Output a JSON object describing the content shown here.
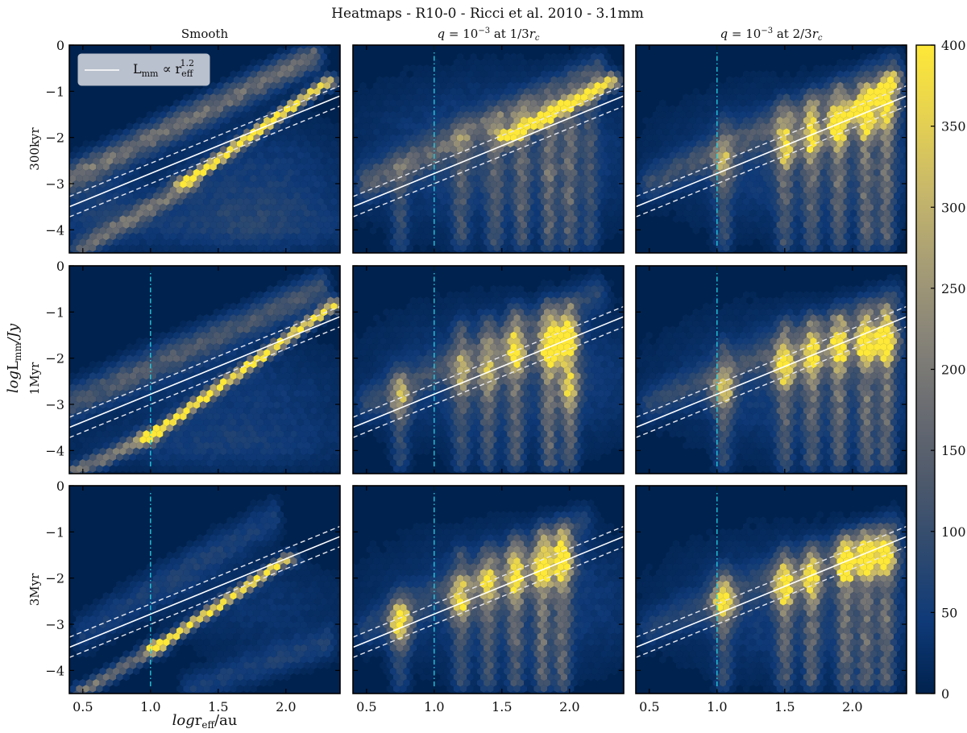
{
  "chart_data": {
    "type": "heatmap",
    "subtype": "hexbin",
    "title": "Heatmaps - R10-0 - Ricci et al. 2010 - 3.1mm",
    "xlabel": {
      "prefix": "log",
      "main": "r",
      "sub": "eff",
      "suffix": "/au"
    },
    "ylabel": {
      "prefix": "log",
      "main": "L",
      "sub": "mm",
      "suffix": "/Jy"
    },
    "xlim": [
      0.4,
      2.4
    ],
    "ylim": [
      -4.5,
      0
    ],
    "xticks": [
      0.5,
      1.0,
      1.5,
      2.0
    ],
    "xtick_labels": [
      "0.5",
      "1.0",
      "1.5",
      "2.0"
    ],
    "yticks": [
      0,
      -1,
      -2,
      -3,
      -4
    ],
    "ytick_labels": [
      "0",
      "−1",
      "−2",
      "−3",
      "−4"
    ],
    "columns": [
      {
        "title": "Smooth"
      },
      {
        "title_parts": {
          "q": "q",
          "eq": " = 10",
          "exp": "−3",
          "at": " at 1/3",
          "r": "r",
          "sub": "c"
        }
      },
      {
        "title_parts": {
          "q": "q",
          "eq": " = 10",
          "exp": "−3",
          "at": " at 2/3",
          "r": "r",
          "sub": "c"
        }
      }
    ],
    "rows": [
      {
        "label": "300kyr"
      },
      {
        "label": "1Myr"
      },
      {
        "label": "3Myr"
      }
    ],
    "legend": {
      "placement": "upper-left",
      "entry": {
        "main": "L",
        "sub": "mm",
        "prop": " ∝ r",
        "rsub": "eff",
        "exp": "1.2"
      }
    },
    "fit_line": {
      "slope": 1.2,
      "points": [
        [
          0.4,
          -3.5
        ],
        [
          2.4,
          -1.1
        ]
      ],
      "dashed_offset": 0.22,
      "color": "#ffffff"
    },
    "reference_line": {
      "x": 1.0,
      "color": "#22d3e6",
      "style": "dash-dot",
      "absent_in": [
        [
          0,
          0
        ]
      ]
    },
    "colorbar": {
      "min": 0,
      "max": 400,
      "ticks": [
        0,
        50,
        100,
        150,
        200,
        250,
        300,
        350,
        400
      ],
      "colormap": "cividis",
      "stops": [
        "#00224e",
        "#0f3a78",
        "#2f4a6f",
        "#4f5a6c",
        "#6b6d72",
        "#898578",
        "#a89e75",
        "#c8b86a",
        "#e6d250",
        "#fee838"
      ]
    },
    "panels": [
      [
        {
          "bands": [
            [
              [
                0.4,
                -2.9
              ],
              [
                2.2,
                -0.25
              ],
              0.22,
              170
            ],
            [
              [
                1.25,
                -3.0
              ],
              [
                2.3,
                -0.8
              ],
              0.1,
              400
            ],
            [
              [
                0.5,
                -4.4
              ],
              [
                1.3,
                -3.0
              ],
              0.15,
              160
            ]
          ],
          "blobs": [
            [
              [
                1.8,
                -3.0
              ],
              0.5,
              0.9,
              55
            ],
            [
              [
                0.6,
                -3.5
              ],
              0.25,
              0.6,
              50
            ],
            [
              [
                1.6,
                -3.9
              ],
              0.7,
              0.4,
              45
            ]
          ],
          "streaks": [],
          "peaks": []
        },
        {
          "bands": [
            [
              [
                0.4,
                -3.0
              ],
              [
                2.25,
                -0.5
              ],
              0.25,
              120
            ],
            [
              [
                1.0,
                -3.7
              ],
              [
                2.35,
                -0.85
              ],
              0.1,
              400
            ],
            [
              [
                0.45,
                -4.45
              ],
              [
                1.0,
                -3.7
              ],
              0.12,
              200
            ]
          ],
          "blobs": [
            [
              [
                1.7,
                -2.8
              ],
              0.6,
              0.8,
              45
            ],
            [
              [
                1.5,
                -3.9
              ],
              0.7,
              0.4,
              40
            ]
          ],
          "streaks": [],
          "peaks": []
        },
        {
          "bands": [
            [
              [
                0.5,
                -3.2
              ],
              [
                1.9,
                -0.7
              ],
              0.3,
              55
            ],
            [
              [
                1.05,
                -3.5
              ],
              [
                2.0,
                -1.6
              ],
              0.09,
              380
            ],
            [
              [
                0.5,
                -4.45
              ],
              [
                1.05,
                -3.5
              ],
              0.12,
              190
            ],
            [
              [
                1.3,
                -4.4
              ],
              [
                2.3,
                -3.4
              ],
              0.25,
              55
            ]
          ],
          "blobs": [
            [
              [
                1.8,
                -2.6
              ],
              0.5,
              0.7,
              35
            ]
          ],
          "streaks": [],
          "peaks": []
        }
      ],
      [
        {
          "bands": [
            [
              [
                1.55,
                -2.0
              ],
              [
                2.3,
                -0.8
              ],
              0.12,
              400
            ],
            [
              [
                0.5,
                -3.0
              ],
              [
                2.2,
                -0.6
              ],
              0.25,
              120
            ]
          ],
          "blobs": [
            [
              [
                1.5,
                -2.4
              ],
              0.7,
              1.1,
              70
            ]
          ],
          "streaks": [
            [
              0.75,
              -2.8,
              80
            ],
            [
              1.2,
              -1.9,
              90
            ],
            [
              1.45,
              -1.7,
              100
            ],
            [
              1.65,
              -1.5,
              110
            ],
            [
              1.85,
              -1.5,
              130
            ],
            [
              2.0,
              -1.4,
              130
            ],
            [
              2.15,
              -1.2,
              80
            ]
          ],
          "peaks": []
        },
        {
          "bands": [
            [
              [
                0.5,
                -3.0
              ],
              [
                2.2,
                -0.6
              ],
              0.25,
              70
            ]
          ],
          "blobs": [
            [
              [
                1.6,
                -2.4
              ],
              0.7,
              1.0,
              65
            ]
          ],
          "streaks": [
            [
              0.75,
              -2.4,
              80
            ],
            [
              1.2,
              -1.4,
              90
            ],
            [
              1.4,
              -1.3,
              100
            ],
            [
              1.6,
              -1.1,
              120
            ],
            [
              1.85,
              -1.0,
              140
            ],
            [
              2.0,
              -1.0,
              140
            ]
          ],
          "peaks": [
            [
              0.75,
              -2.9,
              170
            ],
            [
              1.2,
              -2.4,
              150
            ],
            [
              1.4,
              -2.3,
              170
            ],
            [
              1.6,
              -1.9,
              280
            ],
            [
              1.85,
              -1.8,
              350
            ],
            [
              1.97,
              -1.6,
              380
            ],
            [
              2.0,
              -2.6,
              180
            ]
          ]
        },
        {
          "bands": [
            [
              [
                0.5,
                -3.1
              ],
              [
                2.1,
                -0.8
              ],
              0.25,
              60
            ]
          ],
          "blobs": [
            [
              [
                1.6,
                -2.5
              ],
              0.7,
              1.0,
              60
            ]
          ],
          "streaks": [
            [
              0.75,
              -2.5,
              80
            ],
            [
              1.2,
              -1.6,
              90
            ],
            [
              1.4,
              -1.5,
              100
            ],
            [
              1.6,
              -1.3,
              120
            ],
            [
              1.8,
              -1.1,
              140
            ],
            [
              1.95,
              -1.0,
              140
            ]
          ],
          "peaks": [
            [
              0.75,
              -3.0,
              300
            ],
            [
              1.2,
              -2.5,
              260
            ],
            [
              1.4,
              -2.2,
              220
            ],
            [
              1.6,
              -2.0,
              260
            ],
            [
              1.8,
              -1.8,
              320
            ],
            [
              1.95,
              -1.6,
              380
            ]
          ]
        }
      ],
      [
        {
          "bands": [
            [
              [
                1.9,
                -1.6
              ],
              [
                2.3,
                -0.8
              ],
              0.15,
              300
            ],
            [
              [
                0.5,
                -3.0
              ],
              [
                2.3,
                -0.5
              ],
              0.25,
              90
            ]
          ],
          "blobs": [
            [
              [
                1.7,
                -2.5
              ],
              0.7,
              1.0,
              65
            ]
          ],
          "streaks": [
            [
              1.05,
              -1.8,
              90
            ],
            [
              1.5,
              -1.4,
              110
            ],
            [
              1.7,
              -1.3,
              120
            ],
            [
              1.9,
              -1.1,
              130
            ],
            [
              2.1,
              -1.0,
              140
            ],
            [
              2.25,
              -0.9,
              140
            ]
          ],
          "peaks": [
            [
              1.05,
              -2.6,
              130
            ],
            [
              1.5,
              -2.2,
              220
            ],
            [
              1.7,
              -2.0,
              250
            ],
            [
              1.9,
              -1.8,
              260
            ],
            [
              2.1,
              -1.6,
              280
            ],
            [
              2.25,
              -1.3,
              320
            ]
          ]
        },
        {
          "bands": [
            [
              [
                0.5,
                -3.0
              ],
              [
                2.3,
                -0.7
              ],
              0.25,
              70
            ]
          ],
          "blobs": [
            [
              [
                1.7,
                -2.5
              ],
              0.7,
              1.0,
              65
            ]
          ],
          "streaks": [
            [
              1.05,
              -1.9,
              90
            ],
            [
              1.5,
              -1.4,
              110
            ],
            [
              1.7,
              -1.3,
              120
            ],
            [
              1.9,
              -1.2,
              130
            ],
            [
              2.1,
              -1.1,
              140
            ],
            [
              2.25,
              -1.0,
              140
            ]
          ],
          "peaks": [
            [
              1.05,
              -2.7,
              220
            ],
            [
              1.5,
              -2.2,
              260
            ],
            [
              1.7,
              -2.0,
              280
            ],
            [
              1.9,
              -1.8,
              300
            ],
            [
              2.1,
              -1.7,
              330
            ],
            [
              2.25,
              -1.6,
              380
            ]
          ]
        },
        {
          "bands": [
            [
              [
                0.5,
                -3.1
              ],
              [
                2.3,
                -0.9
              ],
              0.25,
              60
            ]
          ],
          "blobs": [
            [
              [
                1.7,
                -2.6
              ],
              0.7,
              1.0,
              60
            ]
          ],
          "streaks": [
            [
              1.05,
              -2.0,
              90
            ],
            [
              1.5,
              -1.6,
              110
            ],
            [
              1.7,
              -1.5,
              120
            ],
            [
              1.95,
              -1.3,
              130
            ],
            [
              2.1,
              -1.2,
              140
            ],
            [
              2.25,
              -1.2,
              140
            ]
          ],
          "peaks": [
            [
              1.05,
              -2.5,
              300
            ],
            [
              1.5,
              -2.2,
              300
            ],
            [
              1.7,
              -2.0,
              260
            ],
            [
              1.95,
              -1.7,
              330
            ],
            [
              2.1,
              -1.6,
              330
            ],
            [
              2.25,
              -1.5,
              330
            ]
          ]
        }
      ]
    ]
  }
}
